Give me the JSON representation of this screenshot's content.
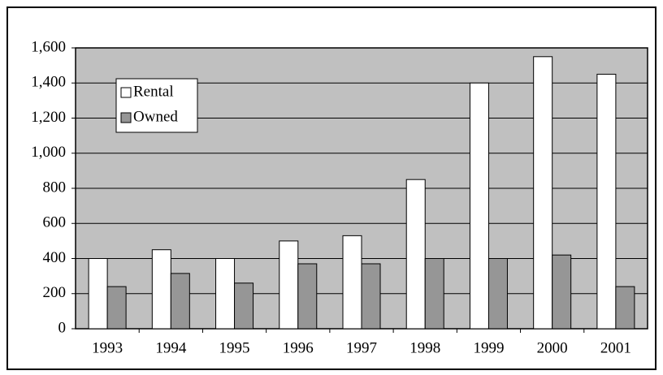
{
  "chart_data": {
    "type": "bar",
    "categories": [
      "1993",
      "1994",
      "1995",
      "1996",
      "1997",
      "1998",
      "1999",
      "2000",
      "2001"
    ],
    "series": [
      {
        "name": "Rental",
        "color": "#ffffff",
        "values": [
          400,
          450,
          400,
          500,
          530,
          850,
          1400,
          1550,
          1450
        ]
      },
      {
        "name": "Owned",
        "color": "#969696",
        "values": [
          240,
          315,
          260,
          370,
          370,
          400,
          400,
          420,
          240
        ]
      }
    ],
    "ylim": [
      0,
      1600
    ],
    "yticks": [
      0,
      200,
      400,
      600,
      800,
      {
        "value": 1000,
        "label": "1,000"
      },
      {
        "value": 1200,
        "label": "1,200"
      },
      {
        "value": 1400,
        "label": "1,400"
      },
      {
        "value": 1600,
        "label": "1,600"
      }
    ],
    "grid": true,
    "background": "#c0c0c0",
    "legend": "upper left"
  }
}
